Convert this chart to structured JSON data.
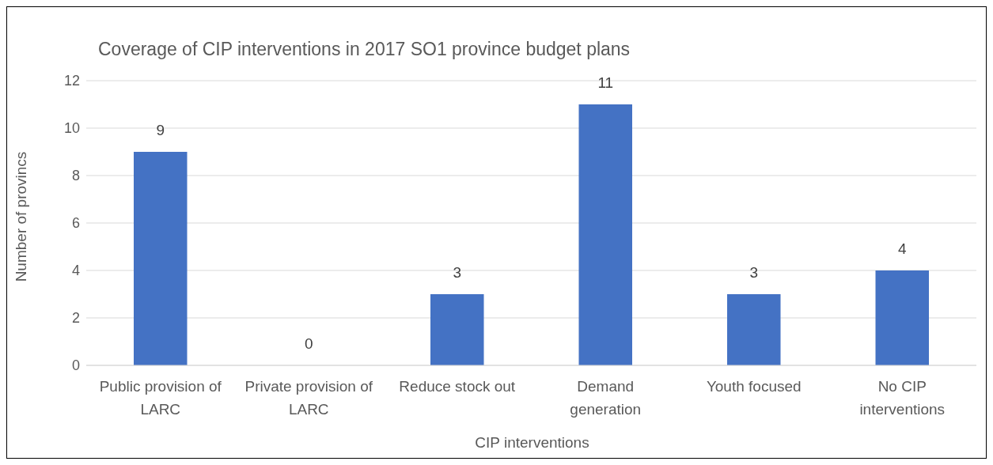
{
  "chart_data": {
    "type": "bar",
    "title": "Coverage of CIP interventions  in 2017 SO1 province budget plans",
    "xlabel": "CIP interventions",
    "ylabel": "Number of provincs",
    "categories": [
      "Public provision of LARC",
      "Private provision of LARC",
      "Reduce stock out",
      "Demand generation",
      "Youth focused",
      "No CIP interventions"
    ],
    "values": [
      9,
      0,
      3,
      11,
      3,
      4
    ],
    "color": "#4472c4",
    "ylim": [
      0,
      12
    ],
    "yticks": [
      0,
      2,
      4,
      6,
      8,
      10,
      12
    ],
    "grid": "y",
    "data_labels": true,
    "legend": false
  }
}
